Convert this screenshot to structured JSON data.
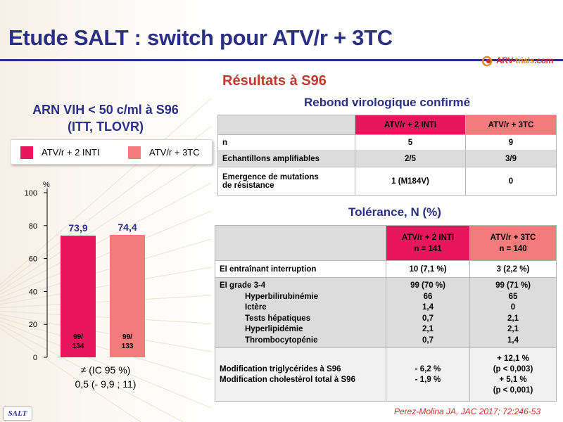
{
  "slide": {
    "title": "Etude SALT : switch pour ATV/r + 3TC",
    "logo": {
      "main": "ARV-",
      "accent": "trials",
      "suffix": ".com"
    },
    "results_heading": "Résultats à S96",
    "footer_badge": "SALT",
    "citation": "Perez-Molina JA, JAC 2017; 72:246-53"
  },
  "chart_heading": {
    "line1": "ARN VIH < 50 c/ml à S96",
    "line2": "(ITT, TLOVR)"
  },
  "legend": [
    {
      "label": "ATV/r + 2 INTI",
      "color": "#e8175d"
    },
    {
      "label": "ATV/r + 3TC",
      "color": "#f37b7b"
    }
  ],
  "chart_data": {
    "type": "bar",
    "ylabel": "%",
    "ylim": [
      0,
      100
    ],
    "yticks": [
      0,
      20,
      40,
      60,
      80,
      100
    ],
    "series": [
      {
        "name": "ATV/r + 2 INTI",
        "value": 73.9,
        "value_label": "73,9",
        "count_line1": "99/",
        "count_line2": "134",
        "color": "#e8175d"
      },
      {
        "name": "ATV/r + 3TC",
        "value": 74.4,
        "value_label": "74,4",
        "count_line1": "99/",
        "count_line2": "133",
        "color": "#f37b7b"
      }
    ],
    "difference": {
      "line1": "≠ (IC 95 %)",
      "line2": "0,5 (- 9,9 ; 11)"
    }
  },
  "rebound_table": {
    "title": "Rebond virologique confirmé",
    "headers": [
      "ATV/r + 2 INTI",
      "ATV/r + 3TC"
    ],
    "rows": [
      {
        "label": "n",
        "a": "5",
        "b": "9"
      },
      {
        "label": "Echantillons amplifiables",
        "a": "2/5",
        "b": "3/9"
      },
      {
        "label_line1": "Emergence de mutations",
        "label_line2": "de résistance",
        "a": "1 (M184V)",
        "b": "0"
      }
    ]
  },
  "tolerance_table": {
    "title": "Tolérance, N (%)",
    "headers": [
      {
        "line1": "ATV/r + 2 INTI",
        "line2": "n = 141"
      },
      {
        "line1": "ATV/r + 3TC",
        "line2": "n = 140"
      }
    ],
    "row_interruption": {
      "label": "EI entraînant interruption",
      "a": "10 (7,1 %)",
      "b": "3 (2,2 %)"
    },
    "grade34": {
      "label": "EI grade 3-4",
      "a": "99 (70 %)",
      "b": "99 (71 %)",
      "sub": [
        {
          "label": "Hyperbilirubinémie",
          "a": "66",
          "b": "65"
        },
        {
          "label": "Ictère",
          "a": "1,4",
          "b": "0"
        },
        {
          "label": "Tests hépatiques",
          "a": "0,7",
          "b": "2,1"
        },
        {
          "label": "Hyperlipidémie",
          "a": "2,1",
          "b": "2,1"
        },
        {
          "label": "Thrombocytopénie",
          "a": "0,7",
          "b": "1,4"
        }
      ]
    },
    "lipids": {
      "label1": "Modification triglycérides à S96",
      "label2": "Modification cholestérol total à S96",
      "a1": "- 6,2 %",
      "a2": "- 1,9 %",
      "b1": "+ 12,1 %",
      "b2": "(p < 0,003)",
      "b3": "+ 5,1 %",
      "b4": "(p < 0,001)"
    }
  }
}
